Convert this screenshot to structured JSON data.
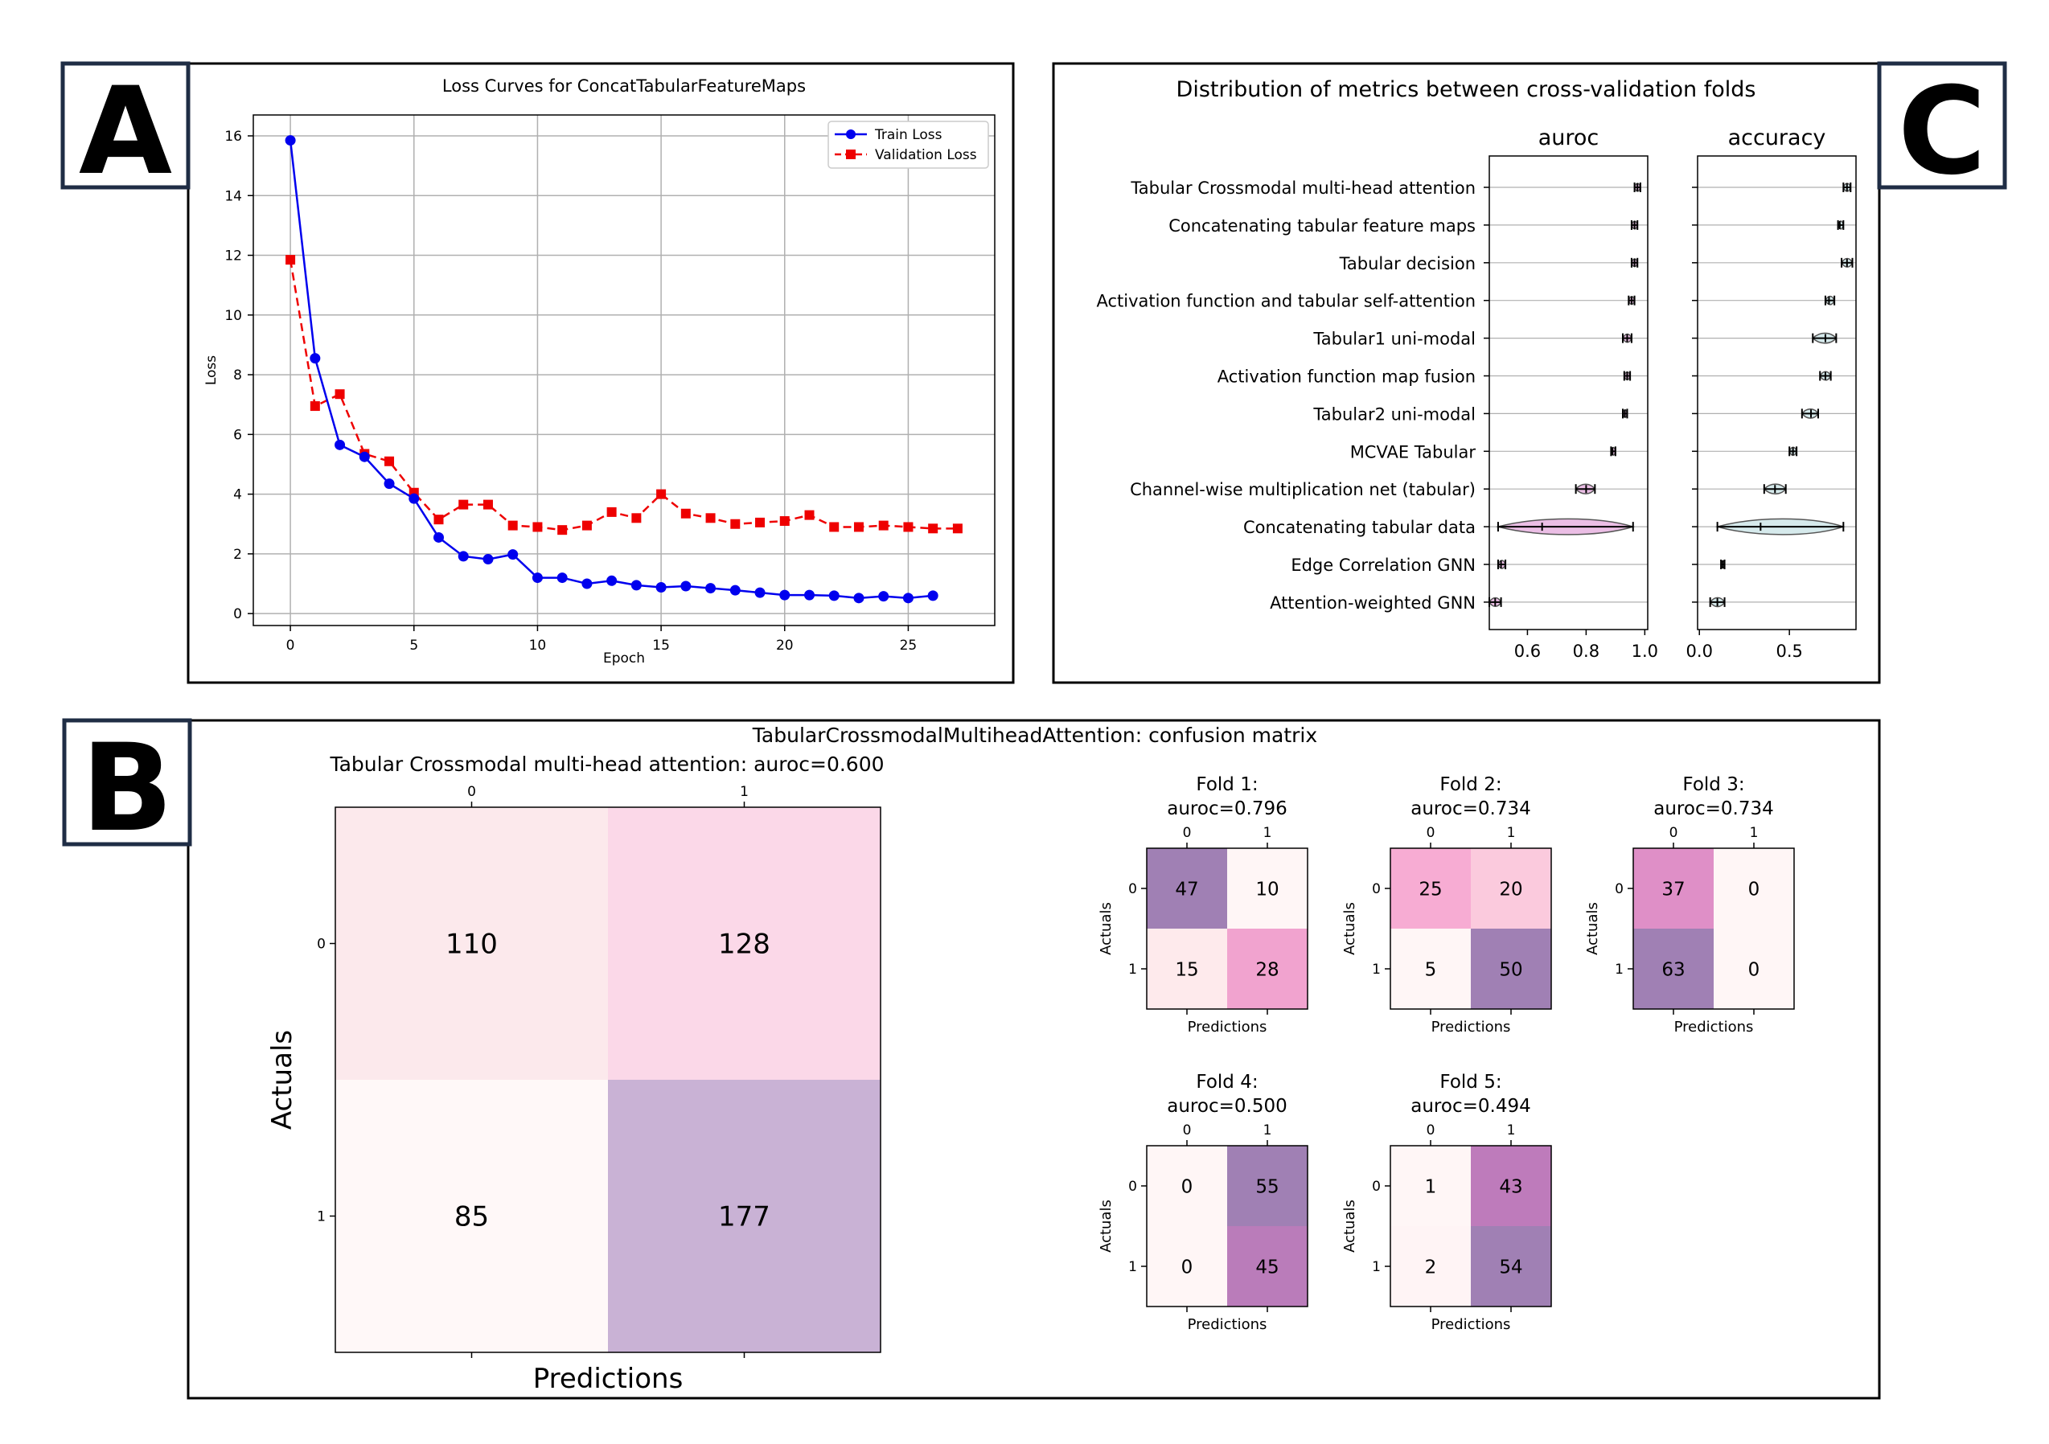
{
  "panel_labels": {
    "a": "A",
    "b": "B",
    "c": "C"
  },
  "colors": {
    "train": "#0000ee",
    "val": "#ee0000",
    "grid": "#b0b0b0",
    "frame": "#1f2d45",
    "violin_auroc": "#e7b3e0",
    "violin_acc": "#cfe6e9"
  },
  "chart_data": [
    {
      "id": "loss",
      "type": "line",
      "title": "Loss Curves for ConcatTabularFeatureMaps",
      "xlabel": "Epoch",
      "ylabel": "Loss",
      "xlim": [
        -1.5,
        28.5
      ],
      "ylim": [
        -0.4,
        16.7
      ],
      "xticks": [
        0,
        5,
        10,
        15,
        20,
        25
      ],
      "yticks": [
        0,
        2,
        4,
        6,
        8,
        10,
        12,
        14,
        16
      ],
      "legend_position": "top-right",
      "series": [
        {
          "name": "Train Loss",
          "style": "solid-circle",
          "x": [
            0,
            1,
            2,
            3,
            4,
            5,
            6,
            7,
            8,
            9,
            10,
            11,
            12,
            13,
            14,
            15,
            16,
            17,
            18,
            19,
            20,
            21,
            22,
            23,
            24,
            25,
            26
          ],
          "values": [
            15.85,
            8.55,
            5.65,
            5.25,
            4.35,
            3.85,
            2.55,
            1.92,
            1.82,
            1.98,
            1.2,
            1.2,
            1.0,
            1.1,
            0.95,
            0.88,
            0.92,
            0.85,
            0.78,
            0.7,
            0.62,
            0.62,
            0.6,
            0.52,
            0.58,
            0.52,
            0.6
          ]
        },
        {
          "name": "Validation Loss",
          "style": "dashed-square",
          "x": [
            0,
            1,
            2,
            3,
            4,
            5,
            6,
            7,
            8,
            9,
            10,
            11,
            12,
            13,
            14,
            15,
            16,
            17,
            18,
            19,
            20,
            21,
            22,
            23,
            24,
            25,
            26,
            27
          ],
          "values": [
            11.85,
            6.95,
            7.35,
            5.35,
            5.1,
            4.05,
            3.15,
            3.65,
            3.65,
            2.95,
            2.9,
            2.8,
            2.95,
            3.4,
            3.2,
            4.0,
            3.35,
            3.2,
            3.0,
            3.05,
            3.1,
            3.3,
            2.9,
            2.9,
            2.95,
            2.9,
            2.85,
            2.85
          ]
        }
      ]
    },
    {
      "id": "confusion",
      "type": "heatmap",
      "suptitle": "TabularCrossmodalMultiheadAttention: confusion matrix",
      "main": {
        "title": "Tabular Crossmodal multi-head attention: auroc=0.600",
        "xlabel": "Predictions",
        "ylabel": "Actuals",
        "xticks": [
          "0",
          "1"
        ],
        "yticks": [
          "0",
          "1"
        ],
        "values": [
          [
            110,
            128
          ],
          [
            85,
            177
          ]
        ]
      },
      "folds": [
        {
          "title": "Fold 1:",
          "auroc": "auroc=0.796",
          "values": [
            [
              47,
              10
            ],
            [
              15,
              28
            ]
          ]
        },
        {
          "title": "Fold 2:",
          "auroc": "auroc=0.734",
          "values": [
            [
              25,
              20
            ],
            [
              5,
              50
            ]
          ]
        },
        {
          "title": "Fold 3:",
          "auroc": "auroc=0.734",
          "values": [
            [
              37,
              0
            ],
            [
              63,
              0
            ]
          ]
        },
        {
          "title": "Fold 4:",
          "auroc": "auroc=0.500",
          "values": [
            [
              0,
              55
            ],
            [
              0,
              45
            ]
          ]
        },
        {
          "title": "Fold 5:",
          "auroc": "auroc=0.494",
          "values": [
            [
              1,
              43
            ],
            [
              2,
              54
            ]
          ]
        }
      ],
      "fold_xlabel": "Predictions",
      "fold_ylabel": "Actuals",
      "fold_ticks": [
        "0",
        "1"
      ]
    },
    {
      "id": "violins",
      "type": "violin",
      "title": "Distribution of metrics between cross-validation folds",
      "categories": [
        "Tabular Crossmodal multi-head attention",
        "Concatenating tabular feature maps",
        "Tabular decision",
        "Activation function and tabular self-attention",
        "Tabular1 uni-modal",
        "Activation function map fusion",
        "Tabular2 uni-modal",
        "MCVAE Tabular",
        "Channel-wise multiplication net (tabular)",
        "Concatenating tabular data",
        "Edge Correlation GNN",
        "Attention-weighted GNN"
      ],
      "panels": [
        {
          "name": "auroc",
          "xlim": [
            0.47,
            1.01
          ],
          "xticks": [
            0.6,
            0.8,
            1.0
          ],
          "xticklabels": [
            "0.6",
            "0.8",
            "1.0"
          ],
          "stats": [
            [
              0.965,
              0.975,
              0.985
            ],
            [
              0.955,
              0.965,
              0.975
            ],
            [
              0.955,
              0.965,
              0.975
            ],
            [
              0.945,
              0.955,
              0.965
            ],
            [
              0.925,
              0.94,
              0.955
            ],
            [
              0.93,
              0.94,
              0.95
            ],
            [
              0.925,
              0.932,
              0.94
            ],
            [
              0.885,
              0.89,
              0.9
            ],
            [
              0.765,
              0.8,
              0.83
            ],
            [
              0.5,
              0.65,
              0.96
            ],
            [
              0.5,
              0.51,
              0.525
            ],
            [
              0.47,
              0.49,
              0.51
            ]
          ]
        },
        {
          "name": "accuracy",
          "xlim": [
            -0.01,
            0.87
          ],
          "xticks": [
            0.0,
            0.5
          ],
          "xticklabels": [
            "0.0",
            "0.5"
          ],
          "stats": [
            [
              0.8,
              0.82,
              0.84
            ],
            [
              0.77,
              0.78,
              0.8
            ],
            [
              0.79,
              0.82,
              0.85
            ],
            [
              0.7,
              0.72,
              0.75
            ],
            [
              0.63,
              0.7,
              0.76
            ],
            [
              0.67,
              0.7,
              0.73
            ],
            [
              0.57,
              0.62,
              0.66
            ],
            [
              0.5,
              0.52,
              0.54
            ],
            [
              0.36,
              0.42,
              0.48
            ],
            [
              0.1,
              0.34,
              0.8
            ],
            [
              0.12,
              0.13,
              0.14
            ],
            [
              0.06,
              0.1,
              0.14
            ]
          ]
        }
      ]
    }
  ]
}
